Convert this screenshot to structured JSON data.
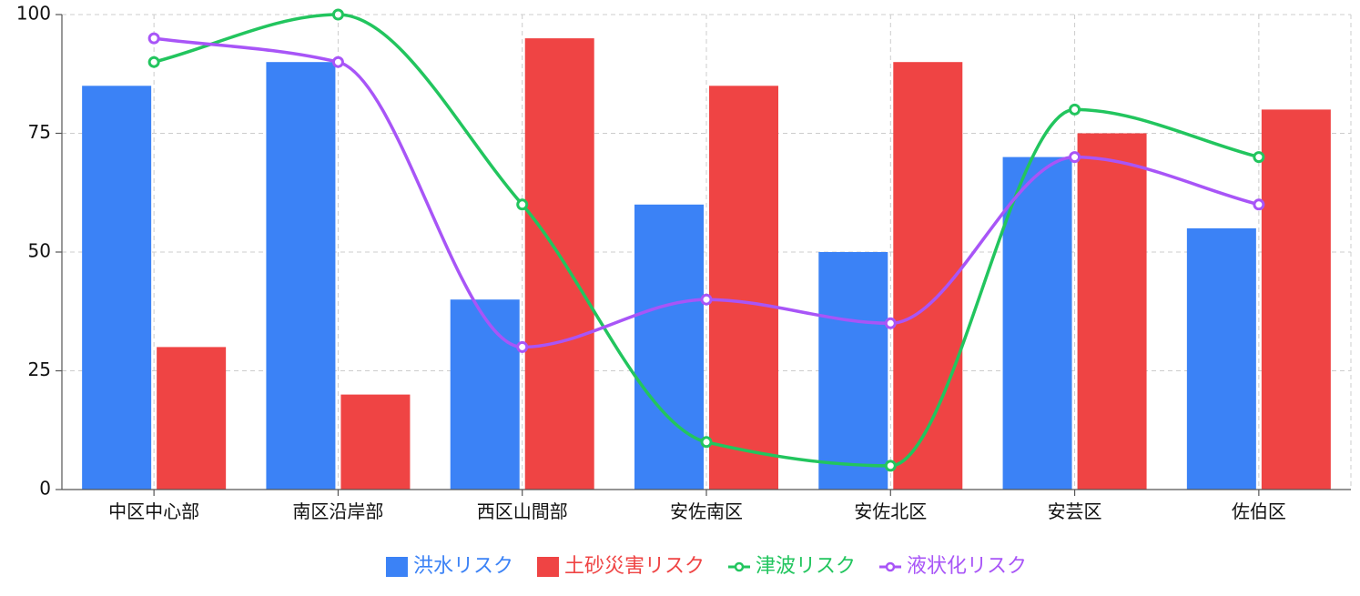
{
  "chart_data": {
    "type": "bar",
    "categories": [
      "中区中心部",
      "南区沿岸部",
      "西区山間部",
      "安佐南区",
      "安佐北区",
      "安芸区",
      "佐伯区"
    ],
    "series": [
      {
        "name": "洪水リスク",
        "kind": "bar",
        "color": "#3b82f6",
        "values": [
          85,
          90,
          40,
          60,
          50,
          70,
          55
        ]
      },
      {
        "name": "土砂災害リスク",
        "kind": "bar",
        "color": "#ef4444",
        "values": [
          30,
          20,
          95,
          85,
          90,
          75,
          80
        ]
      },
      {
        "name": "津波リスク",
        "kind": "line",
        "color": "#22c55e",
        "values": [
          90,
          100,
          60,
          10,
          5,
          80,
          70
        ]
      },
      {
        "name": "液状化リスク",
        "kind": "line",
        "color": "#a855f7",
        "values": [
          95,
          90,
          30,
          40,
          35,
          70,
          60
        ]
      }
    ],
    "title": "",
    "xlabel": "",
    "ylabel": "",
    "ylim": [
      0,
      100
    ],
    "yticks": [
      "0",
      "25",
      "50",
      "75",
      "100"
    ],
    "grid": true,
    "legend": "bottom-center"
  }
}
